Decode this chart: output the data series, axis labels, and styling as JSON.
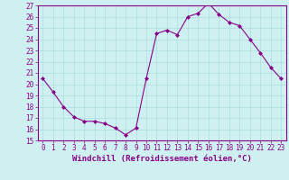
{
  "hours": [
    0,
    1,
    2,
    3,
    4,
    5,
    6,
    7,
    8,
    9,
    10,
    11,
    12,
    13,
    14,
    15,
    16,
    17,
    18,
    19,
    20,
    21,
    22,
    23
  ],
  "values": [
    20.5,
    19.3,
    18.0,
    17.1,
    16.7,
    16.7,
    16.5,
    16.1,
    15.5,
    16.1,
    20.5,
    24.5,
    24.8,
    24.4,
    26.0,
    26.3,
    27.2,
    26.2,
    25.5,
    25.2,
    24.0,
    22.8,
    21.5,
    20.5
  ],
  "xlim": [
    -0.5,
    23.5
  ],
  "ylim": [
    15,
    27
  ],
  "yticks": [
    15,
    16,
    17,
    18,
    19,
    20,
    21,
    22,
    23,
    24,
    25,
    26,
    27
  ],
  "xticks": [
    0,
    1,
    2,
    3,
    4,
    5,
    6,
    7,
    8,
    9,
    10,
    11,
    12,
    13,
    14,
    15,
    16,
    17,
    18,
    19,
    20,
    21,
    22,
    23
  ],
  "line_color": "#880088",
  "marker": "D",
  "marker_size": 2.0,
  "bg_color": "#cff0f0",
  "grid_color": "#aadddd",
  "xlabel": "Windchill (Refroidissement éolien,°C)",
  "xlabel_fontsize": 6.5,
  "tick_fontsize": 5.5,
  "tick_color": "#880088",
  "label_color": "#880088",
  "spine_color": "#880088"
}
